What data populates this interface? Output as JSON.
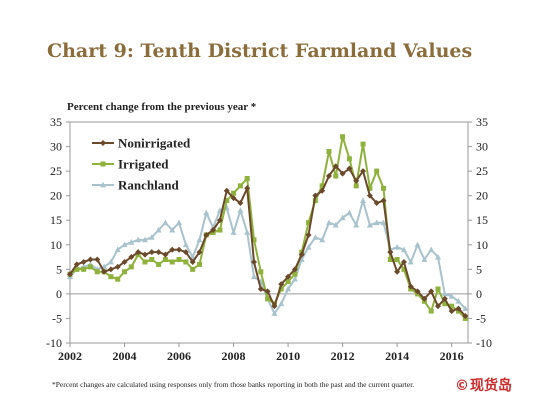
{
  "chart_data": {
    "type": "line",
    "title": "Chart 9: Tenth District Farmland Values",
    "ylabel": "Percent change from the previous year *",
    "ylim": [
      -10,
      35
    ],
    "yticks": [
      -10,
      -5,
      0,
      5,
      10,
      15,
      20,
      25,
      30,
      35
    ],
    "xlim": [
      2002,
      2016.6
    ],
    "xticks": [
      2002,
      2004,
      2006,
      2008,
      2010,
      2012,
      2014,
      2016
    ],
    "footnote": "*Percent changes are calculated using responses only from those banks reporting in both the past and the current quarter.",
    "legend_position": "top-left",
    "series": [
      {
        "name": "Nonirrigated",
        "color": "#6b4a2b",
        "marker": "diamond",
        "points": [
          [
            2002.0,
            4.0
          ],
          [
            2002.25,
            6.0
          ],
          [
            2002.5,
            6.5
          ],
          [
            2002.75,
            7.0
          ],
          [
            2003.0,
            7.0
          ],
          [
            2003.25,
            4.5
          ],
          [
            2003.5,
            5.0
          ],
          [
            2003.75,
            5.5
          ],
          [
            2004.0,
            6.5
          ],
          [
            2004.25,
            7.5
          ],
          [
            2004.5,
            8.5
          ],
          [
            2004.75,
            8.0
          ],
          [
            2005.0,
            8.5
          ],
          [
            2005.25,
            8.5
          ],
          [
            2005.5,
            8.0
          ],
          [
            2005.75,
            9.0
          ],
          [
            2006.0,
            9.0
          ],
          [
            2006.25,
            8.5
          ],
          [
            2006.5,
            6.5
          ],
          [
            2006.75,
            8.5
          ],
          [
            2007.0,
            12.0
          ],
          [
            2007.25,
            13.0
          ],
          [
            2007.5,
            15.0
          ],
          [
            2007.75,
            21.0
          ],
          [
            2008.0,
            19.5
          ],
          [
            2008.25,
            18.5
          ],
          [
            2008.5,
            21.5
          ],
          [
            2008.75,
            6.5
          ],
          [
            2009.0,
            1.0
          ],
          [
            2009.25,
            0.5
          ],
          [
            2009.5,
            -2.5
          ],
          [
            2009.75,
            2.0
          ],
          [
            2010.0,
            3.5
          ],
          [
            2010.25,
            5.0
          ],
          [
            2010.5,
            8.0
          ],
          [
            2010.75,
            12.0
          ],
          [
            2011.0,
            20.0
          ],
          [
            2011.25,
            21.0
          ],
          [
            2011.5,
            24.0
          ],
          [
            2011.75,
            26.0
          ],
          [
            2012.0,
            24.5
          ],
          [
            2012.25,
            25.5
          ],
          [
            2012.5,
            23.0
          ],
          [
            2012.75,
            25.0
          ],
          [
            2013.0,
            20.0
          ],
          [
            2013.25,
            18.5
          ],
          [
            2013.5,
            19.0
          ],
          [
            2013.75,
            8.5
          ],
          [
            2014.0,
            4.5
          ],
          [
            2014.25,
            6.5
          ],
          [
            2014.5,
            1.5
          ],
          [
            2014.75,
            0.5
          ],
          [
            2015.0,
            -1.0
          ],
          [
            2015.25,
            0.5
          ],
          [
            2015.5,
            -2.5
          ],
          [
            2015.75,
            -1.0
          ],
          [
            2016.0,
            -3.5
          ],
          [
            2016.25,
            -3.0
          ],
          [
            2016.5,
            -4.5
          ]
        ]
      },
      {
        "name": "Irrigated",
        "color": "#8fb23c",
        "marker": "square",
        "points": [
          [
            2002.0,
            4.0
          ],
          [
            2002.25,
            5.0
          ],
          [
            2002.5,
            5.0
          ],
          [
            2002.75,
            5.5
          ],
          [
            2003.0,
            4.5
          ],
          [
            2003.25,
            4.5
          ],
          [
            2003.5,
            3.5
          ],
          [
            2003.75,
            3.0
          ],
          [
            2004.0,
            4.5
          ],
          [
            2004.25,
            5.5
          ],
          [
            2004.5,
            8.0
          ],
          [
            2004.75,
            6.5
          ],
          [
            2005.0,
            7.0
          ],
          [
            2005.25,
            6.0
          ],
          [
            2005.5,
            7.0
          ],
          [
            2005.75,
            6.5
          ],
          [
            2006.0,
            7.0
          ],
          [
            2006.25,
            6.5
          ],
          [
            2006.5,
            5.0
          ],
          [
            2006.75,
            6.0
          ],
          [
            2007.0,
            12.0
          ],
          [
            2007.25,
            12.5
          ],
          [
            2007.5,
            13.0
          ],
          [
            2007.75,
            19.0
          ],
          [
            2008.0,
            20.5
          ],
          [
            2008.25,
            22.0
          ],
          [
            2008.5,
            23.5
          ],
          [
            2008.75,
            11.0
          ],
          [
            2009.0,
            4.5
          ],
          [
            2009.25,
            -1.0
          ],
          [
            2009.5,
            -2.0
          ],
          [
            2009.75,
            1.0
          ],
          [
            2010.0,
            2.5
          ],
          [
            2010.25,
            4.0
          ],
          [
            2010.5,
            8.5
          ],
          [
            2010.75,
            14.5
          ],
          [
            2011.0,
            19.0
          ],
          [
            2011.25,
            22.0
          ],
          [
            2011.5,
            29.0
          ],
          [
            2011.75,
            24.0
          ],
          [
            2012.0,
            32.0
          ],
          [
            2012.25,
            27.5
          ],
          [
            2012.5,
            22.0
          ],
          [
            2012.75,
            30.5
          ],
          [
            2013.0,
            21.5
          ],
          [
            2013.25,
            25.0
          ],
          [
            2013.5,
            21.5
          ],
          [
            2013.75,
            7.0
          ],
          [
            2014.0,
            7.0
          ],
          [
            2014.25,
            5.0
          ],
          [
            2014.5,
            1.0
          ],
          [
            2014.75,
            0.0
          ],
          [
            2015.0,
            -1.5
          ],
          [
            2015.25,
            -3.5
          ],
          [
            2015.5,
            1.0
          ],
          [
            2015.75,
            -2.0
          ],
          [
            2016.0,
            -2.5
          ],
          [
            2016.25,
            -3.5
          ],
          [
            2016.5,
            -5.0
          ]
        ]
      },
      {
        "name": "Ranchland",
        "color": "#a9c3cc",
        "marker": "triangle",
        "points": [
          [
            2002.0,
            3.5
          ],
          [
            2002.25,
            5.0
          ],
          [
            2002.5,
            5.5
          ],
          [
            2002.75,
            6.0
          ],
          [
            2003.0,
            5.0
          ],
          [
            2003.25,
            5.5
          ],
          [
            2003.5,
            6.5
          ],
          [
            2003.75,
            9.0
          ],
          [
            2004.0,
            10.0
          ],
          [
            2004.25,
            10.5
          ],
          [
            2004.5,
            11.0
          ],
          [
            2004.75,
            11.0
          ],
          [
            2005.0,
            11.5
          ],
          [
            2005.25,
            13.0
          ],
          [
            2005.5,
            14.5
          ],
          [
            2005.75,
            13.0
          ],
          [
            2006.0,
            14.5
          ],
          [
            2006.25,
            10.0
          ],
          [
            2006.5,
            7.5
          ],
          [
            2006.75,
            11.0
          ],
          [
            2007.0,
            16.5
          ],
          [
            2007.25,
            13.5
          ],
          [
            2007.5,
            17.0
          ],
          [
            2007.75,
            17.5
          ],
          [
            2008.0,
            12.5
          ],
          [
            2008.25,
            17.0
          ],
          [
            2008.5,
            12.5
          ],
          [
            2008.75,
            3.5
          ],
          [
            2009.0,
            2.5
          ],
          [
            2009.25,
            -1.0
          ],
          [
            2009.5,
            -4.0
          ],
          [
            2009.75,
            -2.0
          ],
          [
            2010.0,
            1.0
          ],
          [
            2010.25,
            3.0
          ],
          [
            2010.5,
            7.0
          ],
          [
            2010.75,
            9.5
          ],
          [
            2011.0,
            11.5
          ],
          [
            2011.25,
            11.0
          ],
          [
            2011.5,
            14.5
          ],
          [
            2011.75,
            14.0
          ],
          [
            2012.0,
            15.5
          ],
          [
            2012.25,
            16.5
          ],
          [
            2012.5,
            14.0
          ],
          [
            2012.75,
            19.0
          ],
          [
            2013.0,
            14.0
          ],
          [
            2013.25,
            14.5
          ],
          [
            2013.5,
            14.5
          ],
          [
            2013.75,
            9.0
          ],
          [
            2014.0,
            9.5
          ],
          [
            2014.25,
            9.0
          ],
          [
            2014.5,
            6.5
          ],
          [
            2014.75,
            10.0
          ],
          [
            2015.0,
            7.0
          ],
          [
            2015.25,
            9.0
          ],
          [
            2015.5,
            7.5
          ],
          [
            2015.75,
            0.0
          ],
          [
            2016.0,
            -0.5
          ],
          [
            2016.25,
            -1.5
          ],
          [
            2016.5,
            -3.0
          ]
        ]
      }
    ]
  },
  "watermark": {
    "text": "现货岛",
    "symbol": "©"
  }
}
